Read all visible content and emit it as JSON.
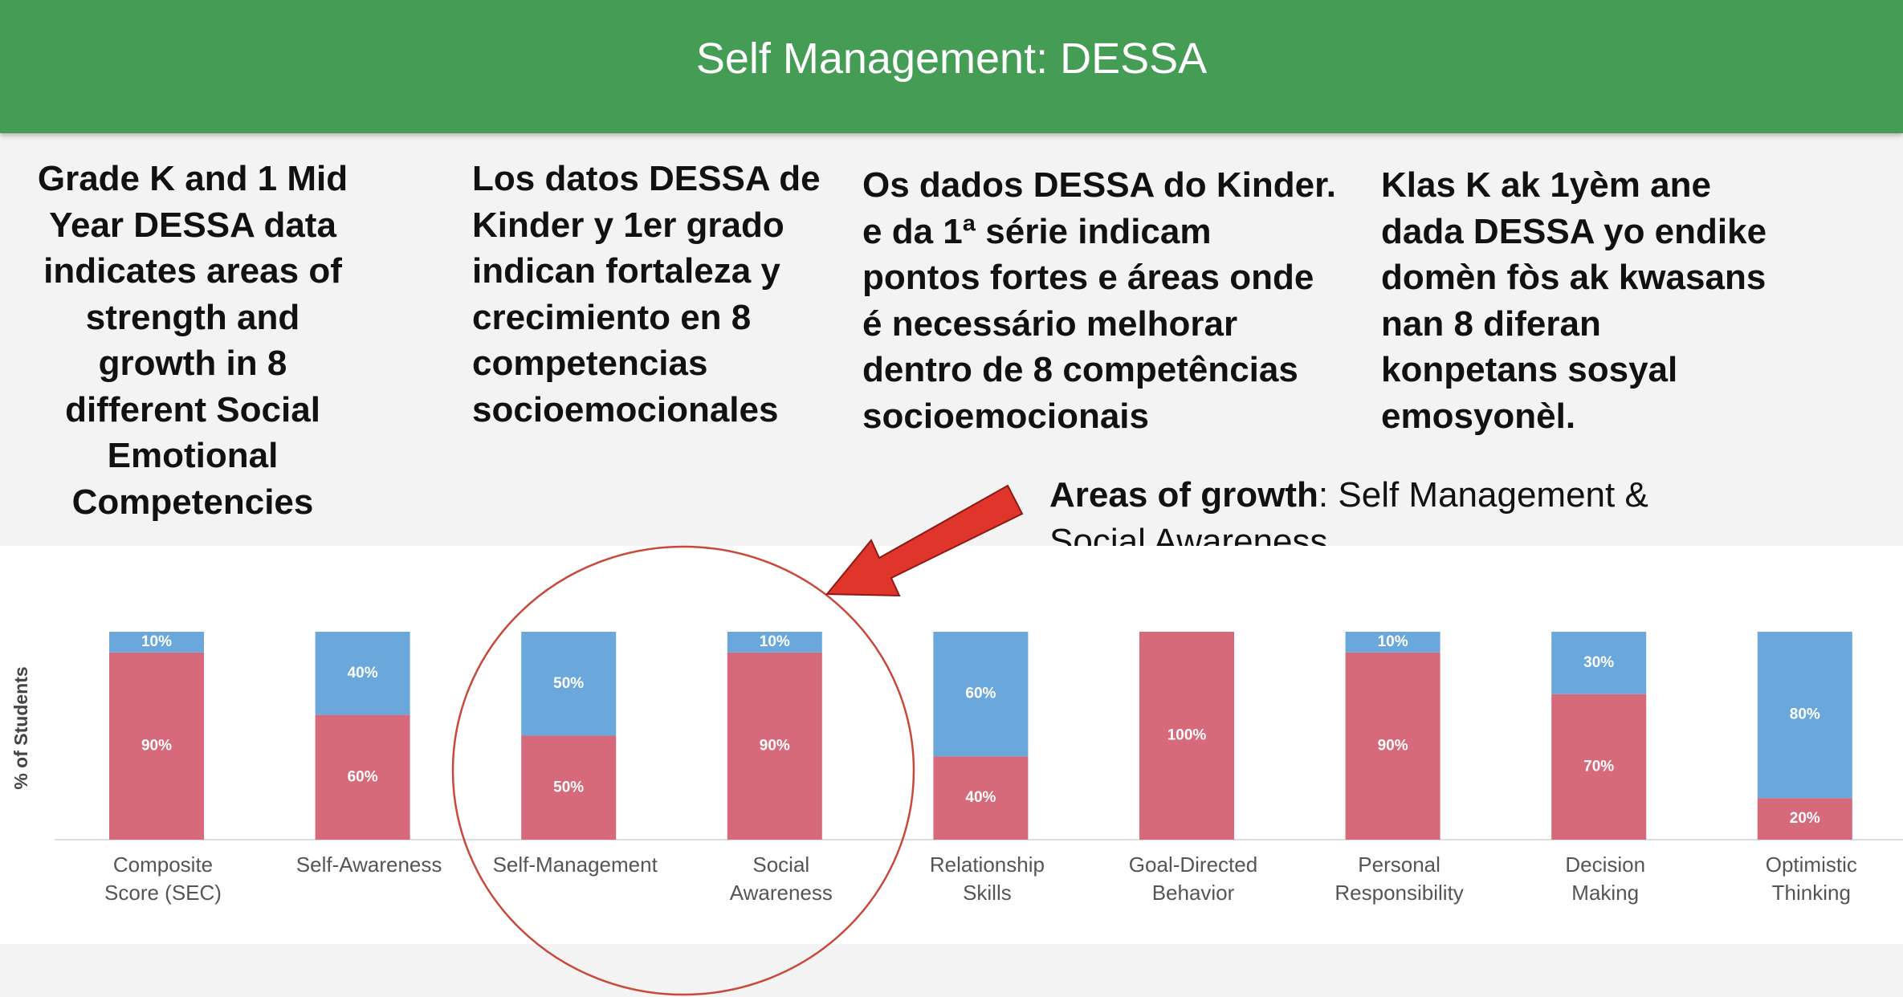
{
  "title": "Self Management: DESSA",
  "paragraphs": [
    [
      "Grade K and 1 Mid",
      "Year DESSA data",
      "indicates areas of",
      "strength and",
      "growth in 8",
      "different Social",
      "Emotional",
      "Competencies"
    ],
    [
      "Los datos DESSA de",
      "Kinder y 1er grado",
      "indican fortaleza y",
      "crecimiento en 8",
      "competencias",
      "socioemocionales"
    ],
    [
      "Os dados DESSA do Kinder.",
      "e da 1ª série indicam",
      "pontos fortes e áreas onde",
      "é necessário melhorar",
      "dentro de 8 competências",
      "socioemocionais"
    ],
    [
      "Klas K ak 1yèm ane",
      "dada DESSA yo endike",
      "domèn fòs ak kwasans",
      "nan 8 diferan",
      "konpetans sosyal",
      "emosyonèl."
    ]
  ],
  "callout": {
    "bold": "Areas of growth",
    "lines": [
      ": Self Management &",
      "Social Awareness"
    ]
  },
  "chart_data": {
    "type": "stacked_bar",
    "y_label": "% of Students",
    "ylim": [
      0,
      100
    ],
    "categories": [
      [
        "Composite",
        "Score (SEC)"
      ],
      [
        "Self-Awareness"
      ],
      [
        "Self-Management"
      ],
      [
        "Social",
        "Awareness"
      ],
      [
        "Relationship",
        "Skills"
      ],
      [
        "Goal-Directed",
        "Behavior"
      ],
      [
        "Personal",
        "Responsibility"
      ],
      [
        "Decision",
        "Making"
      ],
      [
        "Optimistic",
        "Thinking"
      ]
    ],
    "series": [
      {
        "color": "#d6697a",
        "values": [
          90,
          60,
          50,
          90,
          40,
          100,
          90,
          70,
          20
        ],
        "value_labels": [
          "90%",
          "60%",
          "50%",
          "90%",
          "40%",
          "100%",
          "90%",
          "70%",
          "20%"
        ]
      },
      {
        "color": "#6aa8dc",
        "values": [
          10,
          40,
          50,
          10,
          60,
          0,
          10,
          30,
          80
        ],
        "value_labels": [
          "10%",
          "40%",
          "50%",
          "10%",
          "60%",
          null,
          "10%",
          "30%",
          "80%"
        ]
      }
    ]
  }
}
